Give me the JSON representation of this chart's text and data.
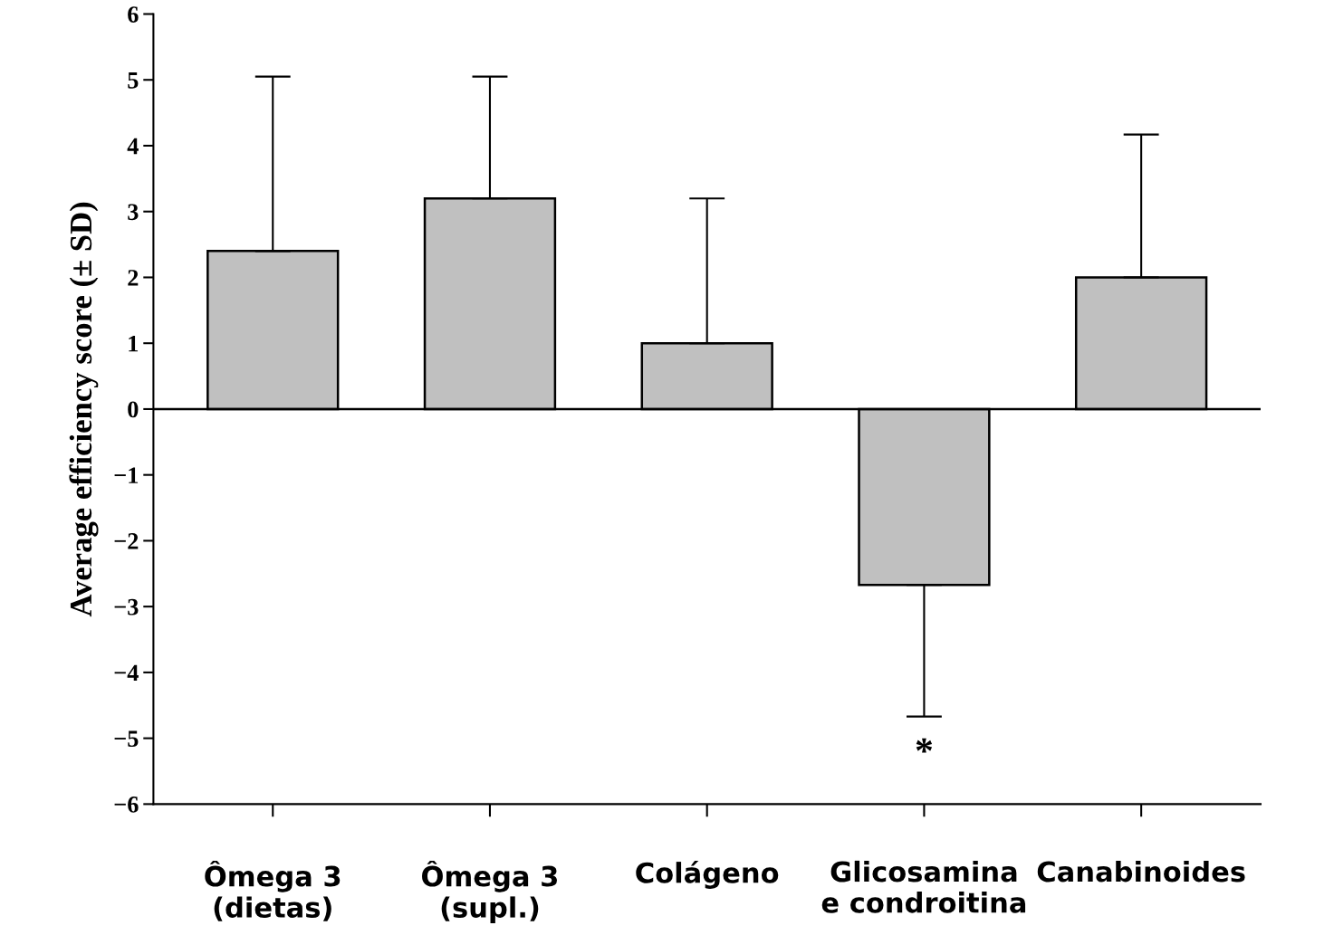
{
  "chart_data": {
    "type": "bar",
    "ylabel": "Average efficiency score (± SD)",
    "categories": [
      "Ômega 3\n(dietas)",
      "Ômega 3\n(supl.)",
      "Colágeno",
      "Glicosamina\ne condroitina",
      "Canabinoides"
    ],
    "values": [
      2.4,
      3.2,
      1.0,
      -2.67,
      2.0
    ],
    "errors": [
      [
        2.4,
        5.05
      ],
      [
        3.2,
        5.05
      ],
      [
        1.0,
        3.2
      ],
      [
        -4.67,
        -2.67
      ],
      [
        2.0,
        4.17
      ]
    ],
    "color": "#c0c0c0",
    "ylim": [
      -6,
      6
    ],
    "yticks": [
      {
        "value": -6,
        "label": "−6"
      },
      {
        "value": -5,
        "label": "−5"
      },
      {
        "value": -4,
        "label": "−4"
      },
      {
        "value": -3,
        "label": "−3"
      },
      {
        "value": -2,
        "label": "−2"
      },
      {
        "value": -1,
        "label": "−1"
      },
      0,
      1,
      2,
      3,
      4,
      5,
      6
    ],
    "ref_lines": [
      {
        "axis": "y",
        "value": 0,
        "color": "#000000"
      }
    ],
    "annotations": [
      "*"
    ],
    "grid": false,
    "legend": false
  }
}
